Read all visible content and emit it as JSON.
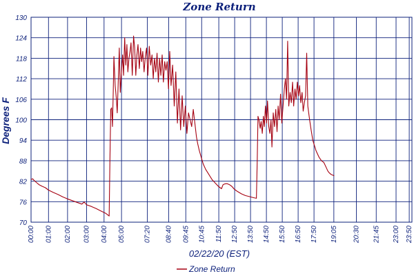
{
  "chart_data": {
    "type": "line",
    "title": "Zone Return",
    "ylabel": "Degrees F",
    "xlabel": "02/22/20 (EST)",
    "ylim": [
      70,
      130
    ],
    "yticks": [
      70,
      76,
      82,
      88,
      94,
      100,
      106,
      112,
      118,
      124,
      130
    ],
    "x_range_hours": [
      0,
      24
    ],
    "xticks": [
      {
        "label": "00:00",
        "t": 0.0
      },
      {
        "label": "01:00",
        "t": 1.1
      },
      {
        "label": "02:00",
        "t": 2.3
      },
      {
        "label": "03:00",
        "t": 3.5
      },
      {
        "label": "04:00",
        "t": 4.6
      },
      {
        "label": "05:00",
        "t": 5.7
      },
      {
        "label": "07:20",
        "t": 7.33
      },
      {
        "label": "08:40",
        "t": 8.67
      },
      {
        "label": "09:45",
        "t": 9.75
      },
      {
        "label": "10:45",
        "t": 10.75
      },
      {
        "label": "11:50",
        "t": 11.83
      },
      {
        "label": "12:50",
        "t": 12.83
      },
      {
        "label": "13:50",
        "t": 13.83
      },
      {
        "label": "14:50",
        "t": 14.83
      },
      {
        "label": "15:50",
        "t": 15.83
      },
      {
        "label": "16:50",
        "t": 16.83
      },
      {
        "label": "17:50",
        "t": 17.83
      },
      {
        "label": "19:05",
        "t": 19.08
      },
      {
        "label": "20:30",
        "t": 20.5
      },
      {
        "label": "21:45",
        "t": 21.75
      },
      {
        "label": "23:00",
        "t": 23.0
      },
      {
        "label": "23:50",
        "t": 23.83
      }
    ],
    "grid": true,
    "legend_placement": "bottom-center",
    "series": [
      {
        "name": "Zone Return",
        "color": "#a50010",
        "points": [
          [
            0.0,
            82.5
          ],
          [
            0.1,
            82.7
          ],
          [
            0.2,
            82.2
          ],
          [
            0.35,
            81.6
          ],
          [
            0.5,
            81.0
          ],
          [
            0.7,
            80.5
          ],
          [
            0.9,
            80.1
          ],
          [
            1.1,
            79.4
          ],
          [
            1.4,
            78.7
          ],
          [
            1.7,
            78.1
          ],
          [
            2.0,
            77.4
          ],
          [
            2.3,
            76.8
          ],
          [
            2.6,
            76.3
          ],
          [
            2.9,
            75.8
          ],
          [
            3.2,
            75.3
          ],
          [
            3.35,
            75.9
          ],
          [
            3.5,
            75.1
          ],
          [
            3.8,
            74.6
          ],
          [
            4.1,
            74.0
          ],
          [
            4.4,
            73.3
          ],
          [
            4.7,
            72.6
          ],
          [
            4.92,
            71.8
          ],
          [
            4.97,
            88.0
          ],
          [
            5.02,
            103.0
          ],
          [
            5.08,
            103.5
          ],
          [
            5.13,
            98.0
          ],
          [
            5.18,
            108.0
          ],
          [
            5.22,
            118.5
          ],
          [
            5.3,
            110.0
          ],
          [
            5.38,
            106.0
          ],
          [
            5.43,
            102.0
          ],
          [
            5.5,
            112.0
          ],
          [
            5.56,
            121.0
          ],
          [
            5.62,
            108.0
          ],
          [
            5.7,
            114.0
          ],
          [
            5.77,
            119.0
          ],
          [
            5.83,
            113.0
          ],
          [
            5.9,
            124.0
          ],
          [
            5.97,
            116.0
          ],
          [
            6.04,
            122.0
          ],
          [
            6.1,
            114.0
          ],
          [
            6.17,
            118.0
          ],
          [
            6.24,
            120.0
          ],
          [
            6.3,
            122.5
          ],
          [
            6.38,
            113.0
          ],
          [
            6.46,
            124.5
          ],
          [
            6.53,
            121.0
          ],
          [
            6.6,
            113.0
          ],
          [
            6.67,
            119.0
          ],
          [
            6.74,
            122.0
          ],
          [
            6.82,
            115.0
          ],
          [
            6.9,
            121.0
          ],
          [
            6.97,
            117.0
          ],
          [
            7.04,
            120.0
          ],
          [
            7.12,
            114.0
          ],
          [
            7.2,
            118.5
          ],
          [
            7.28,
            121.0
          ],
          [
            7.36,
            113.0
          ],
          [
            7.45,
            121.5
          ],
          [
            7.54,
            116.0
          ],
          [
            7.62,
            119.0
          ],
          [
            7.7,
            112.0
          ],
          [
            7.78,
            118.0
          ],
          [
            7.86,
            114.0
          ],
          [
            7.94,
            119.5
          ],
          [
            8.02,
            111.0
          ],
          [
            8.1,
            118.0
          ],
          [
            8.18,
            113.0
          ],
          [
            8.26,
            119.0
          ],
          [
            8.34,
            111.0
          ],
          [
            8.42,
            117.0
          ],
          [
            8.5,
            114.5
          ],
          [
            8.58,
            117.0
          ],
          [
            8.66,
            109.0
          ],
          [
            8.74,
            120.0
          ],
          [
            8.82,
            110.0
          ],
          [
            8.92,
            116.0
          ],
          [
            9.02,
            104.0
          ],
          [
            9.12,
            114.0
          ],
          [
            9.22,
            99.0
          ],
          [
            9.32,
            109.0
          ],
          [
            9.42,
            97.0
          ],
          [
            9.52,
            107.0
          ],
          [
            9.62,
            98.0
          ],
          [
            9.72,
            104.0
          ],
          [
            9.82,
            96.0
          ],
          [
            9.92,
            102.0
          ],
          [
            10.02,
            100.0
          ],
          [
            10.12,
            98.0
          ],
          [
            10.22,
            103.0
          ],
          [
            10.32,
            99.0
          ],
          [
            10.42,
            95.0
          ],
          [
            10.5,
            93.0
          ],
          [
            10.6,
            91.0
          ],
          [
            10.72,
            89.0
          ],
          [
            10.85,
            87.0
          ],
          [
            11.0,
            85.5
          ],
          [
            11.2,
            84.0
          ],
          [
            11.4,
            82.5
          ],
          [
            11.6,
            81.5
          ],
          [
            11.8,
            80.5
          ],
          [
            12.0,
            79.8
          ],
          [
            12.1,
            81.0
          ],
          [
            12.2,
            81.2
          ],
          [
            12.35,
            81.3
          ],
          [
            12.5,
            81.0
          ],
          [
            12.65,
            80.5
          ],
          [
            12.8,
            79.7
          ],
          [
            13.0,
            79.0
          ],
          [
            13.25,
            78.3
          ],
          [
            13.5,
            77.8
          ],
          [
            13.75,
            77.5
          ],
          [
            14.0,
            77.2
          ],
          [
            14.2,
            77.0
          ],
          [
            14.25,
            88.0
          ],
          [
            14.3,
            101.0
          ],
          [
            14.36,
            100.0
          ],
          [
            14.44,
            97.5
          ],
          [
            14.5,
            99.5
          ],
          [
            14.57,
            96.0
          ],
          [
            14.64,
            101.0
          ],
          [
            14.7,
            98.0
          ],
          [
            14.77,
            104.0
          ],
          [
            14.84,
            99.0
          ],
          [
            14.9,
            105.5
          ],
          [
            14.98,
            98.0
          ],
          [
            15.05,
            96.0
          ],
          [
            15.12,
            100.0
          ],
          [
            15.18,
            92.0
          ],
          [
            15.26,
            102.0
          ],
          [
            15.34,
            98.0
          ],
          [
            15.42,
            103.0
          ],
          [
            15.5,
            96.5
          ],
          [
            15.57,
            104.0
          ],
          [
            15.64,
            100.0
          ],
          [
            15.72,
            107.5
          ],
          [
            15.8,
            99.0
          ],
          [
            15.88,
            104.0
          ],
          [
            15.96,
            109.0
          ],
          [
            16.03,
            112.0
          ],
          [
            16.1,
            106.0
          ],
          [
            16.17,
            123.0
          ],
          [
            16.24,
            104.0
          ],
          [
            16.32,
            108.0
          ],
          [
            16.4,
            105.0
          ],
          [
            16.48,
            111.0
          ],
          [
            16.55,
            104.0
          ],
          [
            16.63,
            109.0
          ],
          [
            16.7,
            106.0
          ],
          [
            16.78,
            111.0
          ],
          [
            16.85,
            107.0
          ],
          [
            16.92,
            110.0
          ],
          [
            17.0,
            105.0
          ],
          [
            17.08,
            108.0
          ],
          [
            17.15,
            102.5
          ],
          [
            17.22,
            105.0
          ],
          [
            17.3,
            107.0
          ],
          [
            17.37,
            119.5
          ],
          [
            17.44,
            104.0
          ],
          [
            17.55,
            100.0
          ],
          [
            17.65,
            97.0
          ],
          [
            17.75,
            94.0
          ],
          [
            17.85,
            92.5
          ],
          [
            17.95,
            91.0
          ],
          [
            18.05,
            90.0
          ],
          [
            18.15,
            89.0
          ],
          [
            18.3,
            88.0
          ],
          [
            18.45,
            87.5
          ],
          [
            18.6,
            86.0
          ],
          [
            18.7,
            85.0
          ],
          [
            18.78,
            84.5
          ],
          [
            18.9,
            84.0
          ],
          [
            19.0,
            83.8
          ],
          [
            19.1,
            83.6
          ]
        ]
      }
    ]
  }
}
